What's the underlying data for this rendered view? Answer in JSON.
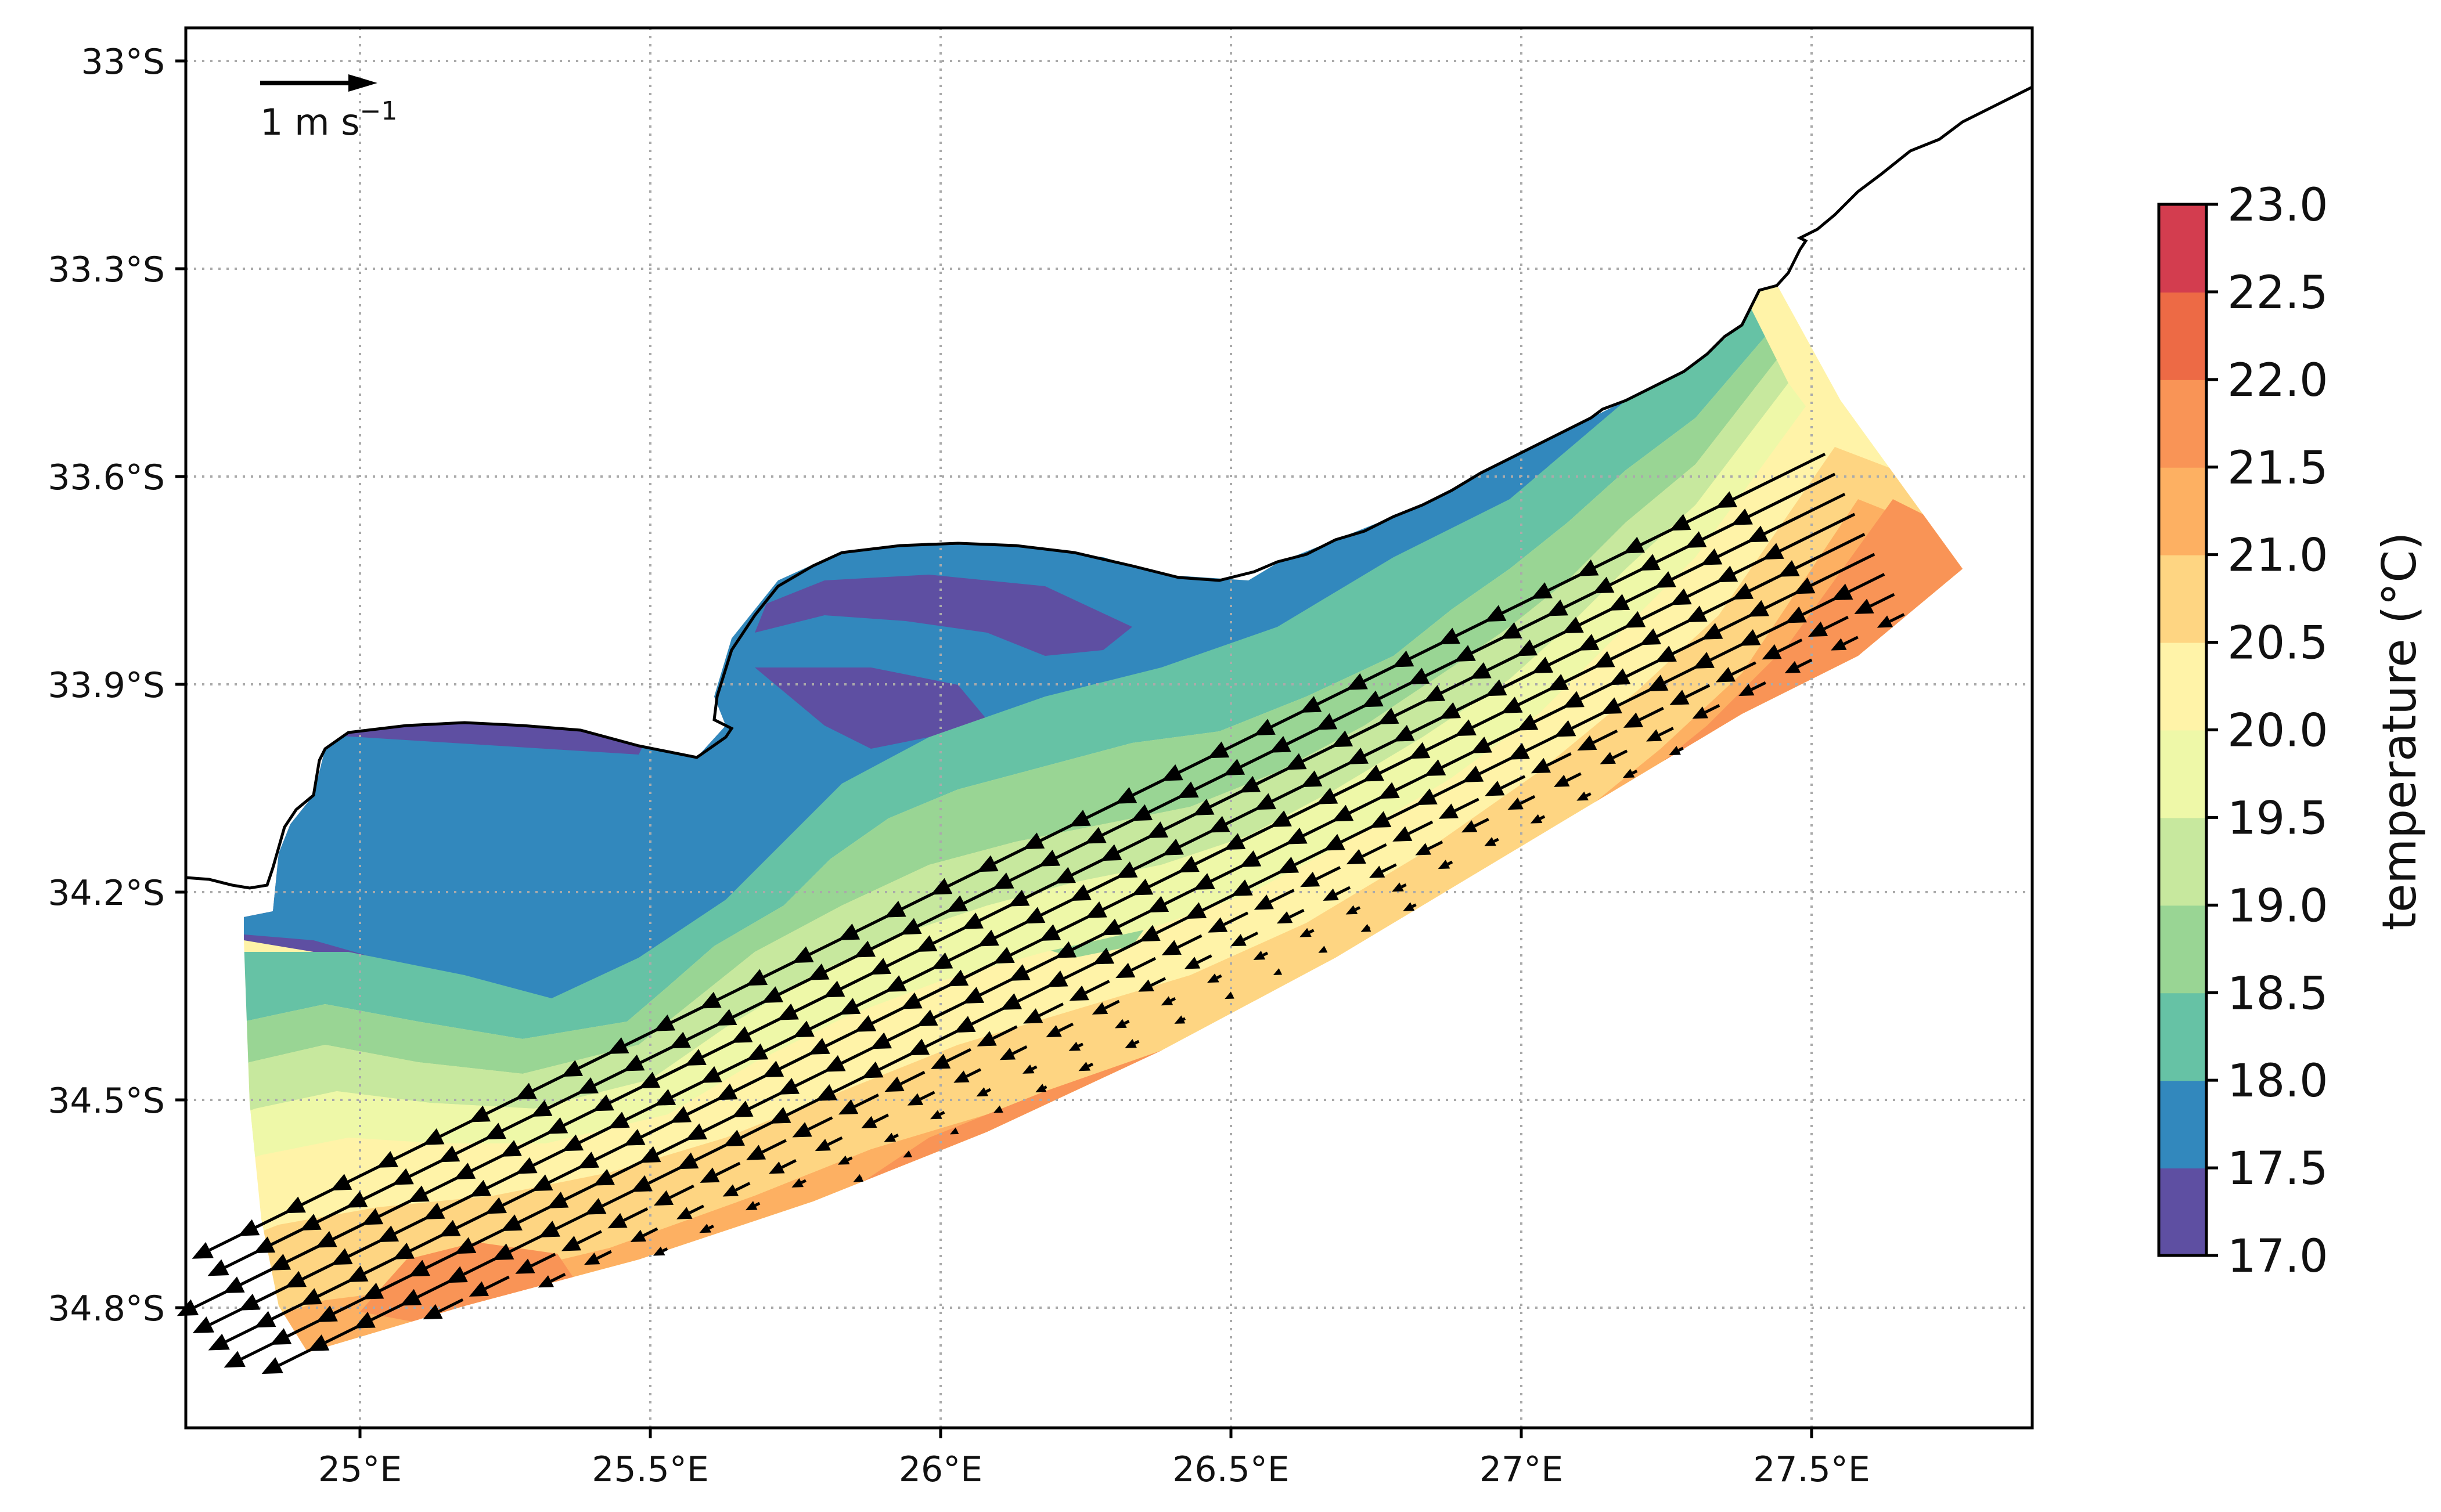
{
  "map": {
    "projection": "lat-lon",
    "lon_range": [
      24.7,
      27.88
    ],
    "lat_range": [
      33.0,
      35.0
    ],
    "lat_ticks": [
      {
        "value": 33.0,
        "label": "33°S"
      },
      {
        "value": 33.3,
        "label": "33.3°S"
      },
      {
        "value": 33.6,
        "label": "33.6°S"
      },
      {
        "value": 33.9,
        "label": "33.9°S"
      },
      {
        "value": 34.2,
        "label": "34.2°S"
      },
      {
        "value": 34.5,
        "label": "34.5°S"
      },
      {
        "value": 34.8,
        "label": "34.8°S"
      }
    ],
    "lon_ticks": [
      {
        "value": 25.0,
        "label": "25°E"
      },
      {
        "value": 25.5,
        "label": "25.5°E"
      },
      {
        "value": 26.0,
        "label": "26°E"
      },
      {
        "value": 26.5,
        "label": "26.5°E"
      },
      {
        "value": 27.0,
        "label": "27°E"
      },
      {
        "value": 27.5,
        "label": "27.5°E"
      }
    ],
    "gridlines": "dotted",
    "coastline_color": "#000000"
  },
  "reference_arrow": {
    "speed_value": 1,
    "label": "1 m s",
    "unit_exp": "−1"
  },
  "colorbar": {
    "label": "temperature (°C)",
    "min": 17.0,
    "max": 23.0,
    "tick_labels": [
      "17.0",
      "17.5",
      "18.0",
      "18.5",
      "19.0",
      "19.5",
      "20.0",
      "20.5",
      "21.0",
      "21.5",
      "22.0",
      "22.5",
      "23.0"
    ],
    "colors": [
      "#5e4fa2",
      "#3288bd",
      "#66c2a5",
      "#99d594",
      "#c7e89e",
      "#eef8a8",
      "#fff3a8",
      "#fed582",
      "#fdb062",
      "#f99456",
      "#ed6a45",
      "#d33d4f",
      "#9e0142"
    ]
  },
  "bands": [
    {
      "temp": "17.0",
      "color": "#5e4fa2"
    },
    {
      "temp": "17.5",
      "color": "#3288bd"
    },
    {
      "temp": "18.0",
      "color": "#66c2a5"
    },
    {
      "temp": "18.5",
      "color": "#99d594"
    },
    {
      "temp": "19.0",
      "color": "#c7e89e"
    },
    {
      "temp": "19.5",
      "color": "#eef8a8"
    },
    {
      "temp": "20.0",
      "color": "#fff3a8"
    },
    {
      "temp": "20.5",
      "color": "#fed582"
    },
    {
      "temp": "21.0",
      "color": "#fdb062"
    },
    {
      "temp": "21.5",
      "color": "#f99456"
    }
  ]
}
